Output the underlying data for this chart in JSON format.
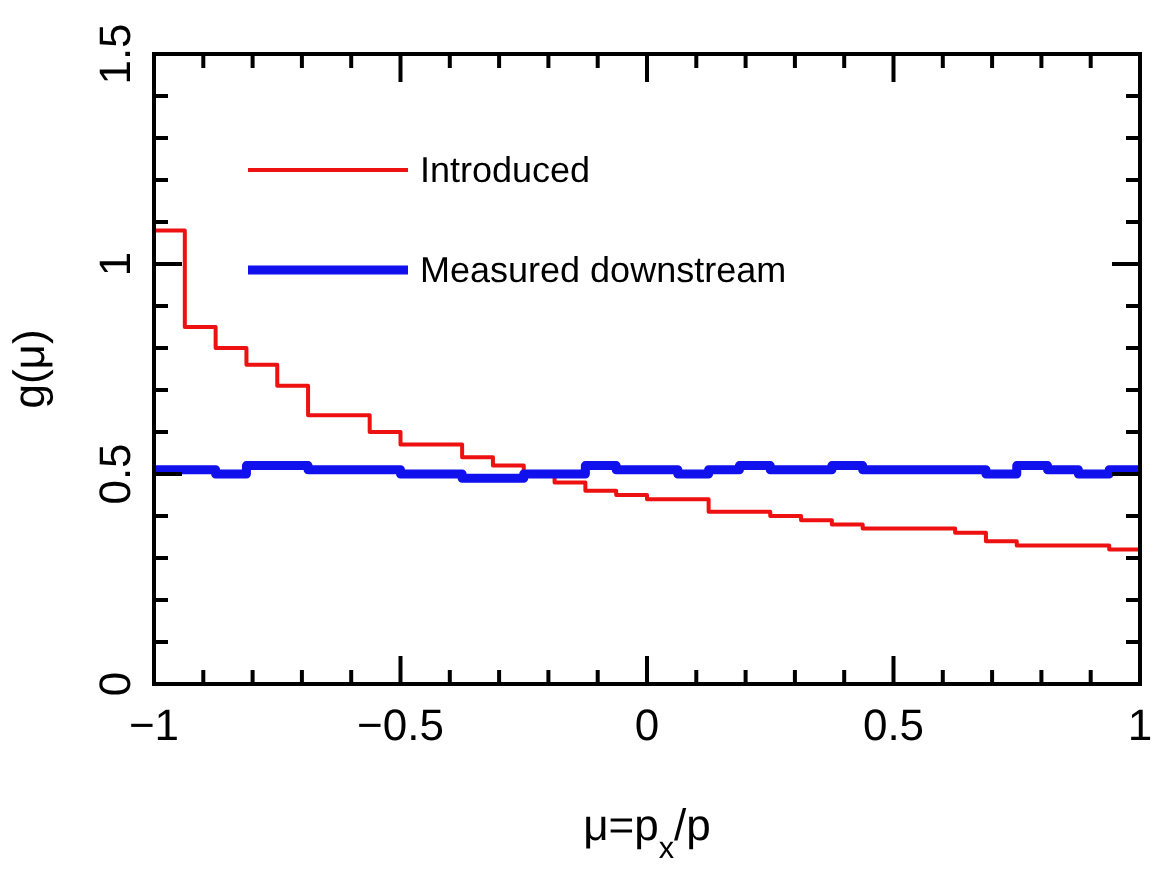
{
  "chart_data": {
    "type": "histogram",
    "xlabel": "μ=p$_{x}$/p",
    "ylabel": "g(μ)",
    "bins": [
      -1,
      -0.9375,
      -0.875,
      -0.8125,
      -0.75,
      -0.6875,
      -0.625,
      -0.5625,
      -0.5,
      -0.4375,
      -0.375,
      -0.3125,
      -0.25,
      -0.1875,
      -0.125,
      -0.0625,
      0,
      0.0625,
      0.125,
      0.1875,
      0.25,
      0.3125,
      0.375,
      0.4375,
      0.5,
      0.5625,
      0.625,
      0.6875,
      0.75,
      0.8125,
      0.875,
      0.9375,
      1
    ],
    "series": [
      {
        "name": "Introduced",
        "color": "#ee1111",
        "values": [
          1.08,
          0.85,
          0.8,
          0.76,
          0.71,
          0.64,
          0.64,
          0.6,
          0.57,
          0.57,
          0.54,
          0.52,
          0.5,
          0.48,
          0.46,
          0.45,
          0.44,
          0.44,
          0.41,
          0.41,
          0.4,
          0.39,
          0.38,
          0.37,
          0.37,
          0.37,
          0.36,
          0.34,
          0.33,
          0.33,
          0.33,
          0.32
        ]
      },
      {
        "name": "Measured downstream",
        "color": "#1111ee",
        "values": [
          0.51,
          0.51,
          0.5,
          0.52,
          0.52,
          0.51,
          0.51,
          0.51,
          0.5,
          0.5,
          0.49,
          0.49,
          0.5,
          0.5,
          0.52,
          0.51,
          0.51,
          0.5,
          0.51,
          0.52,
          0.51,
          0.51,
          0.52,
          0.51,
          0.51,
          0.51,
          0.51,
          0.5,
          0.52,
          0.51,
          0.5,
          0.51
        ]
      }
    ],
    "xlim": [
      -1,
      1
    ],
    "ylim": [
      0,
      1.5
    ],
    "xticks": [
      {
        "value": -1,
        "label": "−1"
      },
      {
        "value": -0.9,
        "label": null
      },
      {
        "value": -0.8,
        "label": null
      },
      {
        "value": -0.7,
        "label": null
      },
      {
        "value": -0.6,
        "label": null
      },
      {
        "value": -0.5,
        "label": "−0.5"
      },
      {
        "value": -0.4,
        "label": null
      },
      {
        "value": -0.3,
        "label": null
      },
      {
        "value": -0.2,
        "label": null
      },
      {
        "value": -0.1,
        "label": null
      },
      0,
      {
        "value": 0.1,
        "label": null
      },
      {
        "value": 0.2,
        "label": null
      },
      {
        "value": 0.3,
        "label": null
      },
      {
        "value": 0.4,
        "label": null
      },
      0.5,
      {
        "value": 0.6,
        "label": null
      },
      {
        "value": 0.7,
        "label": null
      },
      {
        "value": 0.8,
        "label": null
      },
      {
        "value": 0.9,
        "label": null
      },
      1
    ],
    "yticks": [
      0,
      {
        "value": 0.1,
        "label": null
      },
      {
        "value": 0.2,
        "label": null
      },
      {
        "value": 0.3,
        "label": null
      },
      {
        "value": 0.4,
        "label": null
      },
      0.5,
      {
        "value": 0.6,
        "label": null
      },
      {
        "value": 0.7,
        "label": null
      },
      {
        "value": 0.8,
        "label": null
      },
      {
        "value": 0.9,
        "label": null
      },
      1,
      {
        "value": 1.1,
        "label": null
      },
      {
        "value": 1.2,
        "label": null
      },
      {
        "value": 1.3,
        "label": null
      },
      {
        "value": 1.4,
        "label": null
      },
      1.5
    ],
    "legend": "top left",
    "grid": false
  }
}
